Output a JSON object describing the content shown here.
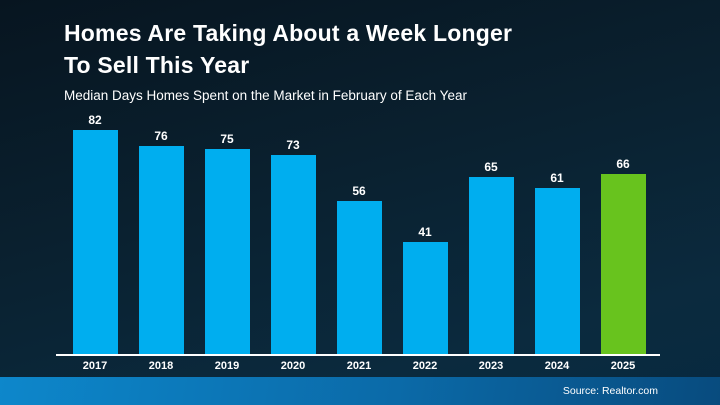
{
  "slide": {
    "title_line1": "Homes Are Taking About a Week Longer",
    "title_line2": "To Sell This Year",
    "subtitle": "Median Days Homes Spent on the Market in February of Each Year",
    "source": "Source: Realtor.com"
  },
  "colors": {
    "background_top": "#071520",
    "background_bottom": "#072940",
    "bar_blue": "#00AEEF",
    "bar_green": "#68C31E",
    "axis_line": "#FFFFFF",
    "footer_gradient_left": "#0D87CB",
    "footer_gradient_right": "#084B7E",
    "text": "#FFFFFF"
  },
  "chart_data": {
    "type": "bar",
    "categories": [
      "2017",
      "2018",
      "2019",
      "2020",
      "2021",
      "2022",
      "2023",
      "2024",
      "2025"
    ],
    "values": [
      82,
      76,
      75,
      73,
      56,
      41,
      65,
      61,
      66
    ],
    "highlight_index": 8,
    "highlight_color": "#68C31E",
    "bar_color": "#00AEEF",
    "title": "Homes Are Taking About a Week Longer To Sell This Year",
    "subtitle": "Median Days Homes Spent on the Market in February of Each Year",
    "xlabel": "",
    "ylabel": "",
    "ylim": [
      0,
      90
    ],
    "grid": false,
    "legend": false,
    "data_labels": true,
    "source": "Source: Realtor.com"
  }
}
